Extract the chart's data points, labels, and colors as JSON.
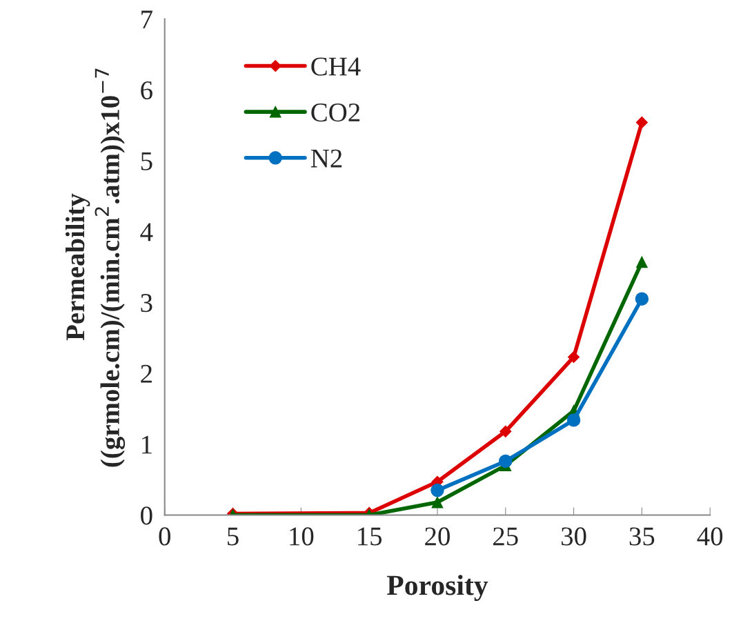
{
  "chart_data": {
    "type": "line",
    "xlabel": "Porosity",
    "ylabel": "Permeability\n((grmole.cm)/(min.cm$^{2}$.atm))x10$^{−7}$",
    "x": [
      5,
      15,
      20,
      25,
      30,
      35
    ],
    "series": [
      {
        "name": "CH4",
        "color": "#dd0000",
        "marker": "diamond",
        "values": [
          0.02,
          0.03,
          0.47,
          1.18,
          2.23,
          5.54
        ]
      },
      {
        "name": "CO2",
        "color": "#006600",
        "marker": "triangle",
        "values": [
          0,
          0,
          0.18,
          0.7,
          1.47,
          3.57
        ]
      },
      {
        "name": "N2",
        "color": "#0070c0",
        "marker": "circle",
        "values": [
          null,
          null,
          0.35,
          0.76,
          1.34,
          3.05
        ]
      }
    ],
    "xlim": [
      0,
      40
    ],
    "xticks": [
      0,
      5,
      10,
      15,
      20,
      25,
      30,
      35,
      40
    ],
    "ylim": [
      0,
      7
    ],
    "yticks": [
      0,
      1,
      2,
      3,
      4,
      5,
      6,
      7
    ],
    "grid": false,
    "legend": "top left"
  }
}
